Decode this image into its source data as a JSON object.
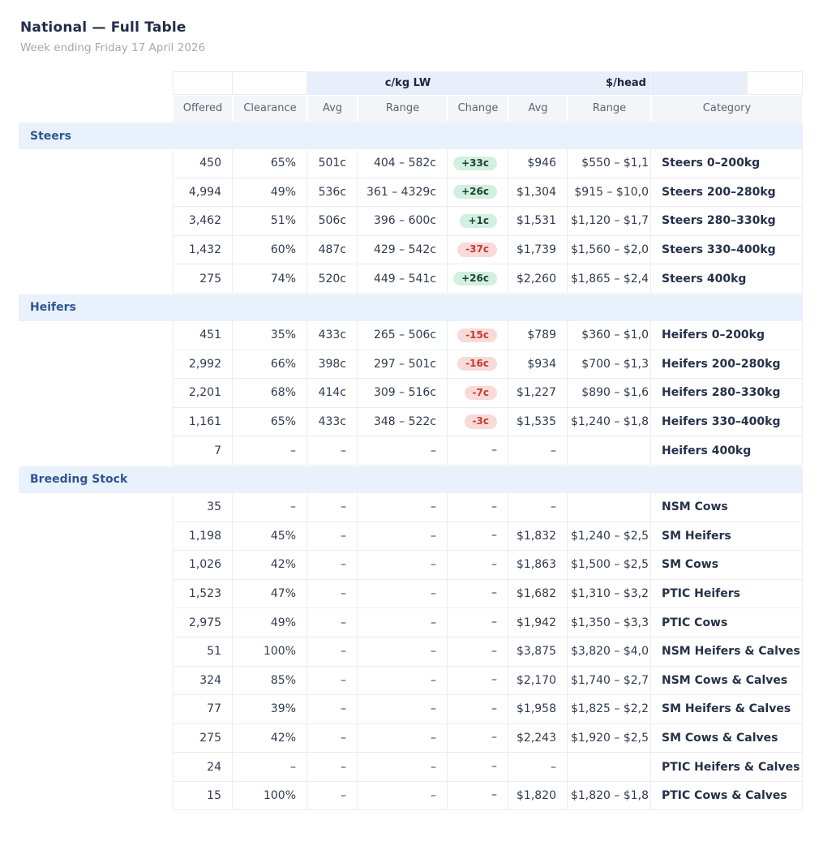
{
  "page": {
    "title": "National — Full Table",
    "subtitle": "Week ending Friday 17 April 2026"
  },
  "colors": {
    "section_band_bg": "#e9f1fd",
    "group_header_bg": "#e9eefb",
    "section_label_text": "#2e5595",
    "positive_badge_bg": "#d2efe0",
    "positive_badge_text": "#1d4233",
    "negative_badge_bg": "#f9dad8",
    "negative_badge_text": "#c23a30",
    "header_text": "#5a6372",
    "body_text": "#303b4f"
  },
  "table": {
    "group_headers": {
      "cents_per_kg": "c/kg LW",
      "dollars_per_head": "$/head"
    },
    "column_headers": {
      "offered": "Offered",
      "clearance": "Clearance",
      "avg_c": "Avg",
      "range_c": "Range",
      "change": "Change",
      "avg_d": "Avg",
      "range_d": "Range",
      "category": "Category"
    },
    "sections": [
      {
        "label": "Steers",
        "rows": [
          {
            "offered": "450",
            "clearance": "65%",
            "avg_c": "501c",
            "range_c": "404 – 582c",
            "change": "+33c",
            "change_dir": "up",
            "avg_d": "$946",
            "range_d": "$550 – $1,1",
            "category": "Steers 0–200kg"
          },
          {
            "offered": "4,994",
            "clearance": "49%",
            "avg_c": "536c",
            "range_c": "361 – 4329c",
            "change": "+26c",
            "change_dir": "up",
            "avg_d": "$1,304",
            "range_d": "$915 – $10,0",
            "category": "Steers 200–280kg"
          },
          {
            "offered": "3,462",
            "clearance": "51%",
            "avg_c": "506c",
            "range_c": "396 – 600c",
            "change": "+1c",
            "change_dir": "up",
            "avg_d": "$1,531",
            "range_d": "$1,120 – $1,7",
            "category": "Steers 280–330kg"
          },
          {
            "offered": "1,432",
            "clearance": "60%",
            "avg_c": "487c",
            "range_c": "429 – 542c",
            "change": "-37c",
            "change_dir": "down",
            "avg_d": "$1,739",
            "range_d": "$1,560 – $2,0",
            "category": "Steers 330–400kg"
          },
          {
            "offered": "275",
            "clearance": "74%",
            "avg_c": "520c",
            "range_c": "449 – 541c",
            "change": "+26c",
            "change_dir": "up",
            "avg_d": "$2,260",
            "range_d": "$1,865 – $2,4",
            "category": "Steers 400kg"
          }
        ]
      },
      {
        "label": "Heifers",
        "rows": [
          {
            "offered": "451",
            "clearance": "35%",
            "avg_c": "433c",
            "range_c": "265 – 506c",
            "change": "-15c",
            "change_dir": "down",
            "avg_d": "$789",
            "range_d": "$360 – $1,0",
            "category": "Heifers 0–200kg"
          },
          {
            "offered": "2,992",
            "clearance": "66%",
            "avg_c": "398c",
            "range_c": "297 – 501c",
            "change": "-16c",
            "change_dir": "down",
            "avg_d": "$934",
            "range_d": "$700 – $1,3",
            "category": "Heifers 200–280kg"
          },
          {
            "offered": "2,201",
            "clearance": "68%",
            "avg_c": "414c",
            "range_c": "309 – 516c",
            "change": "-7c",
            "change_dir": "down",
            "avg_d": "$1,227",
            "range_d": "$890 – $1,6",
            "category": "Heifers 280–330kg"
          },
          {
            "offered": "1,161",
            "clearance": "65%",
            "avg_c": "433c",
            "range_c": "348 – 522c",
            "change": "-3c",
            "change_dir": "down",
            "avg_d": "$1,535",
            "range_d": "$1,240 – $1,8",
            "category": "Heifers 330–400kg"
          },
          {
            "offered": "7",
            "clearance": "–",
            "avg_c": "–",
            "range_c": "–",
            "change": "–",
            "change_dir": "none",
            "avg_d": "–",
            "range_d": "",
            "category": "Heifers 400kg"
          }
        ]
      },
      {
        "label": "Breeding Stock",
        "rows": [
          {
            "offered": "35",
            "clearance": "–",
            "avg_c": "–",
            "range_c": "–",
            "change": "–",
            "change_dir": "none",
            "avg_d": "–",
            "range_d": "",
            "category": "NSM Cows"
          },
          {
            "offered": "1,198",
            "clearance": "45%",
            "avg_c": "–",
            "range_c": "–",
            "change": "–",
            "change_dir": "none",
            "avg_d": "$1,832",
            "range_d": "$1,240 – $2,5",
            "category": "SM Heifers"
          },
          {
            "offered": "1,026",
            "clearance": "42%",
            "avg_c": "–",
            "range_c": "–",
            "change": "–",
            "change_dir": "none",
            "avg_d": "$1,863",
            "range_d": "$1,500 – $2,5",
            "category": "SM Cows"
          },
          {
            "offered": "1,523",
            "clearance": "47%",
            "avg_c": "–",
            "range_c": "–",
            "change": "–",
            "change_dir": "none",
            "avg_d": "$1,682",
            "range_d": "$1,310 – $3,2",
            "category": "PTIC Heifers"
          },
          {
            "offered": "2,975",
            "clearance": "49%",
            "avg_c": "–",
            "range_c": "–",
            "change": "–",
            "change_dir": "none",
            "avg_d": "$1,942",
            "range_d": "$1,350 – $3,3",
            "category": "PTIC Cows"
          },
          {
            "offered": "51",
            "clearance": "100%",
            "avg_c": "–",
            "range_c": "–",
            "change": "–",
            "change_dir": "none",
            "avg_d": "$3,875",
            "range_d": "$3,820 – $4,0",
            "category": "NSM Heifers & Calves"
          },
          {
            "offered": "324",
            "clearance": "85%",
            "avg_c": "–",
            "range_c": "–",
            "change": "–",
            "change_dir": "none",
            "avg_d": "$2,170",
            "range_d": "$1,740 – $2,7",
            "category": "NSM Cows & Calves"
          },
          {
            "offered": "77",
            "clearance": "39%",
            "avg_c": "–",
            "range_c": "–",
            "change": "–",
            "change_dir": "none",
            "avg_d": "$1,958",
            "range_d": "$1,825 – $2,2",
            "category": "SM Heifers & Calves"
          },
          {
            "offered": "275",
            "clearance": "42%",
            "avg_c": "–",
            "range_c": "–",
            "change": "–",
            "change_dir": "none",
            "avg_d": "$2,243",
            "range_d": "$1,920 – $2,5",
            "category": "SM Cows & Calves"
          },
          {
            "offered": "24",
            "clearance": "–",
            "avg_c": "–",
            "range_c": "–",
            "change": "–",
            "change_dir": "none",
            "avg_d": "–",
            "range_d": "",
            "category": "PTIC Heifers & Calves"
          },
          {
            "offered": "15",
            "clearance": "100%",
            "avg_c": "–",
            "range_c": "–",
            "change": "–",
            "change_dir": "none",
            "avg_d": "$1,820",
            "range_d": "$1,820 – $1,8",
            "category": "PTIC Cows & Calves"
          }
        ]
      }
    ]
  }
}
